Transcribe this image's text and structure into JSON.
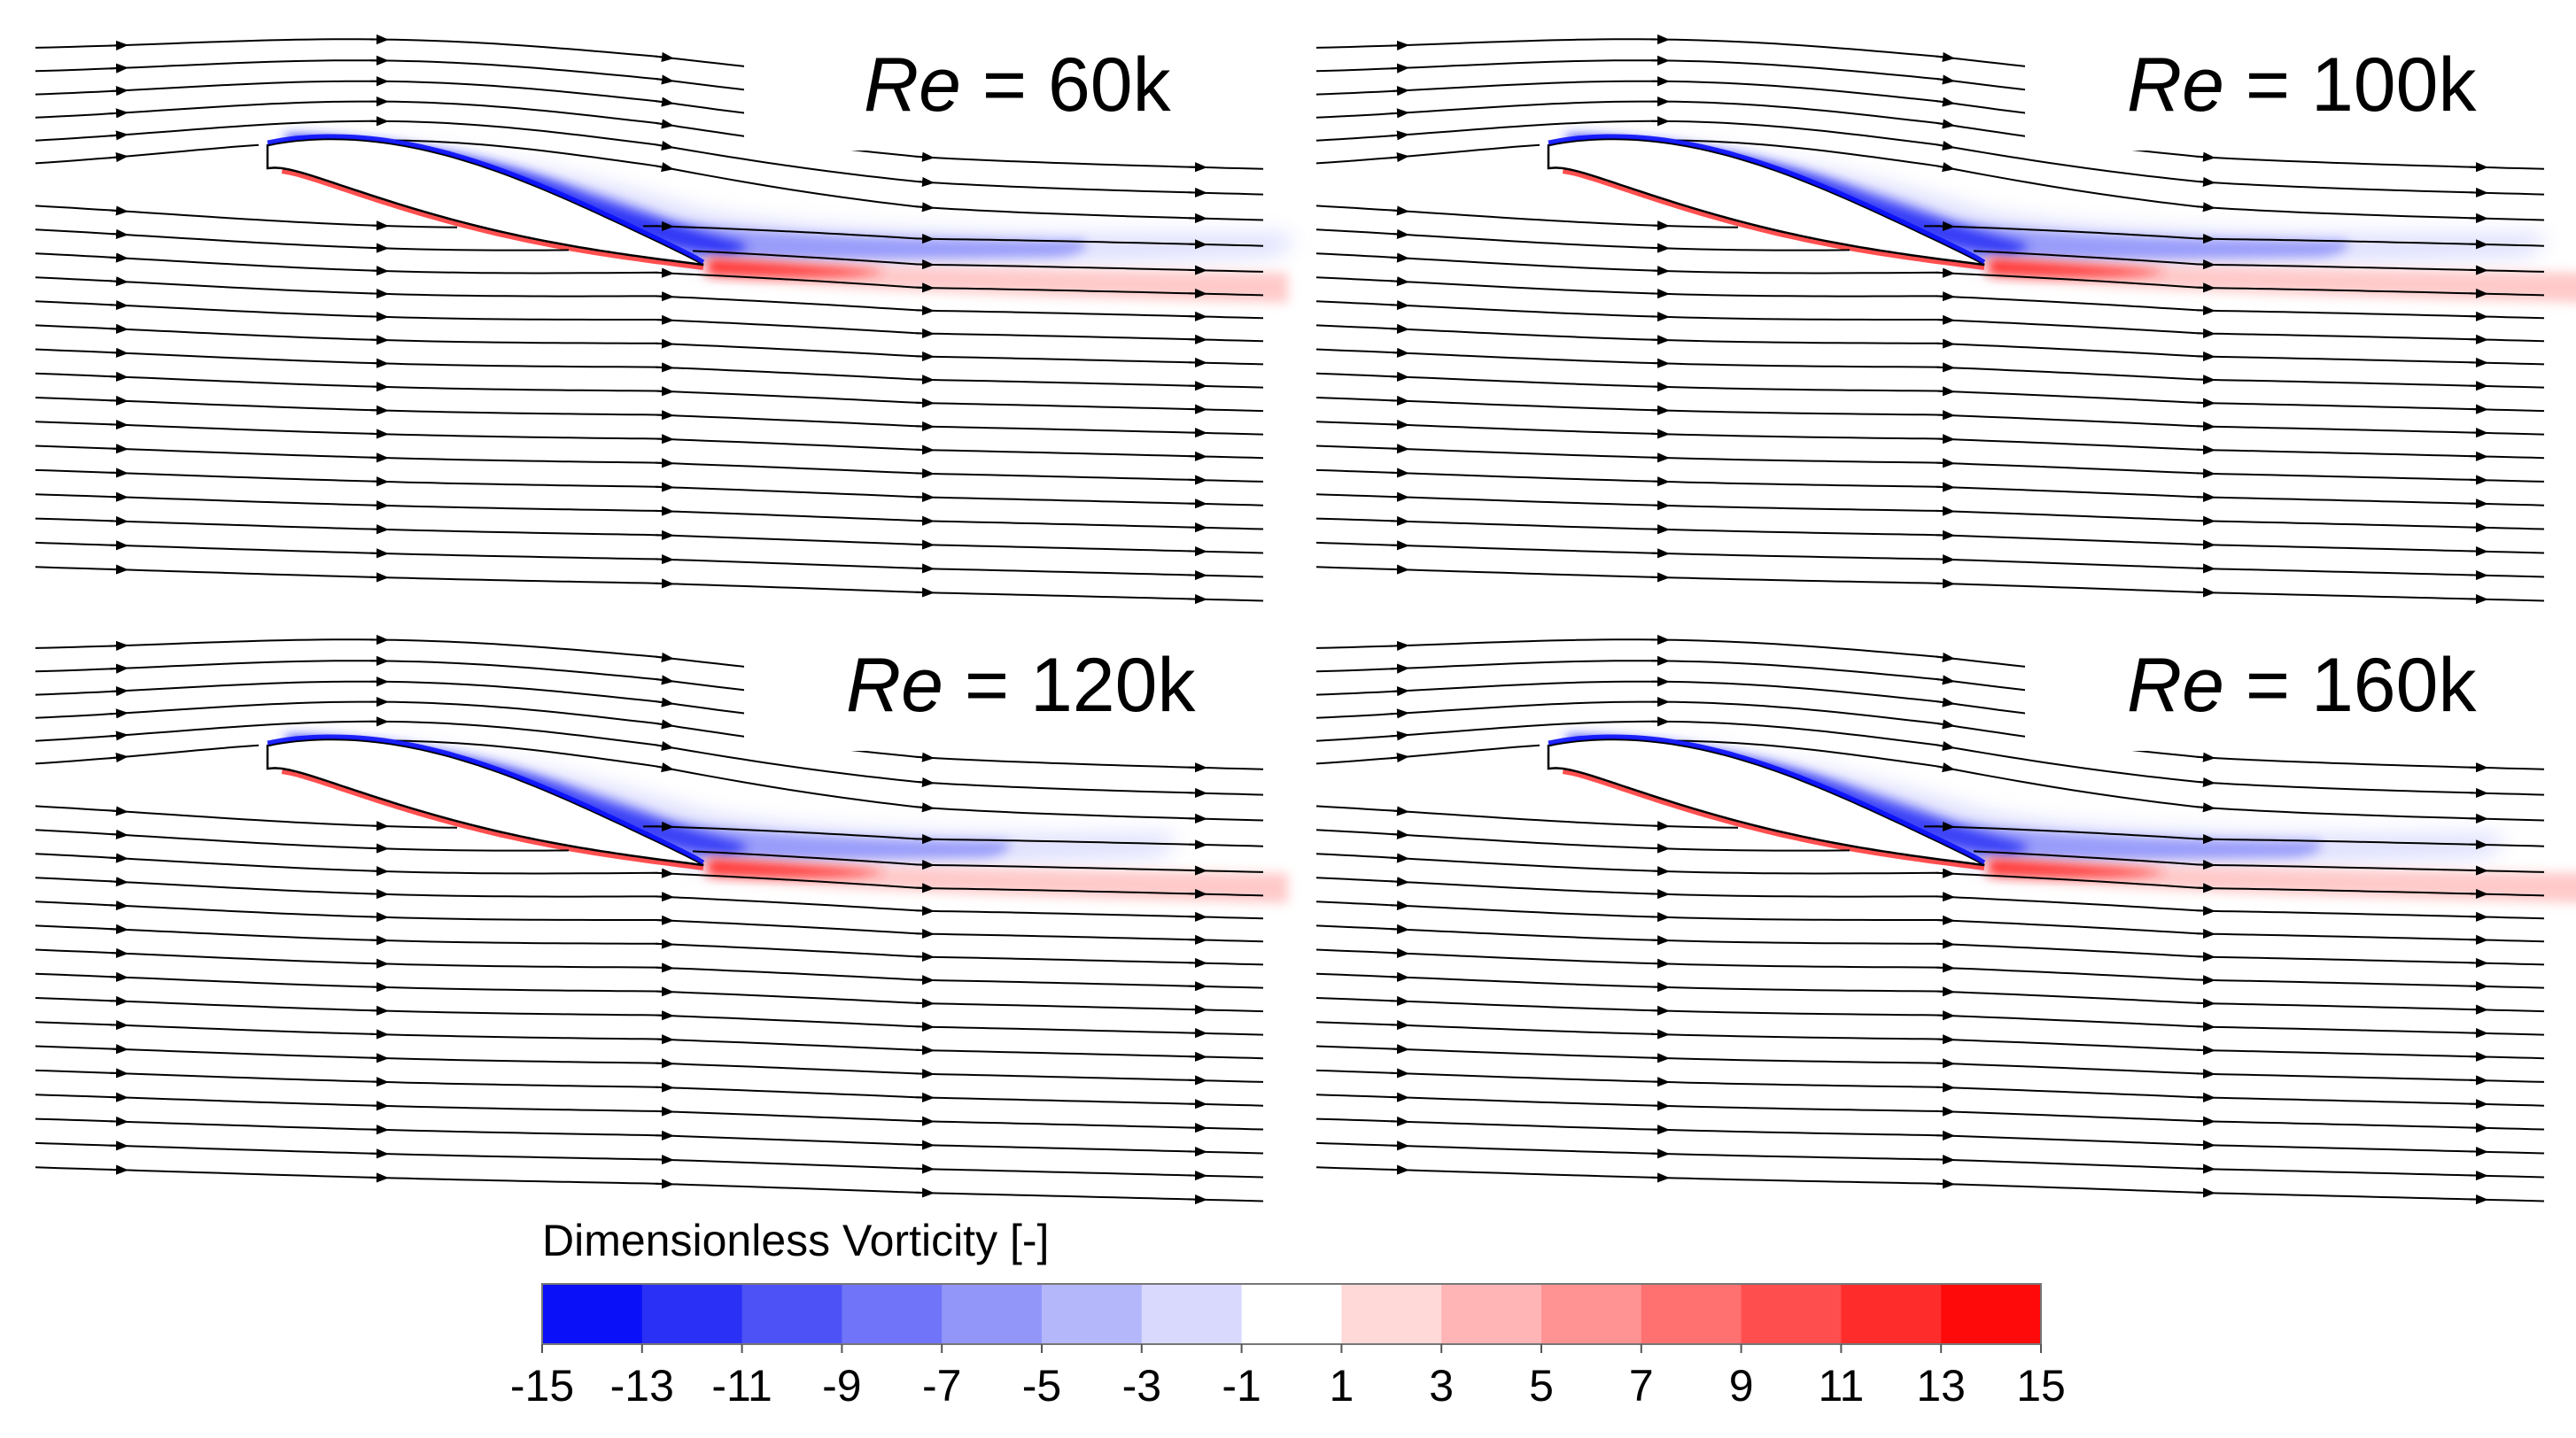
{
  "figure": {
    "panels": [
      {
        "id": "re60k",
        "re_symbol": "Re",
        "equals": " = ",
        "value_label": "60k",
        "wake_length": 1.0,
        "lower_wake_length": 1.0,
        "separation_strength": 1.0
      },
      {
        "id": "re100k",
        "re_symbol": "Re",
        "equals": " = ",
        "value_label": "100k",
        "wake_length": 0.95,
        "lower_wake_length": 1.05,
        "separation_strength": 0.95
      },
      {
        "id": "re120k",
        "re_symbol": "Re",
        "equals": " = ",
        "value_label": "120k",
        "wake_length": 0.8,
        "lower_wake_length": 1.0,
        "separation_strength": 0.9
      },
      {
        "id": "re160k",
        "re_symbol": "Re",
        "equals": " = ",
        "value_label": "160k",
        "wake_length": 0.88,
        "lower_wake_length": 1.05,
        "separation_strength": 0.9
      }
    ],
    "colorbar": {
      "title": "Dimensionless Vorticity [-]",
      "ticks": [
        "-15",
        "-13",
        "-11",
        "-9",
        "-7",
        "-5",
        "-3",
        "-1",
        "1",
        "3",
        "5",
        "7",
        "9",
        "11",
        "13",
        "15"
      ],
      "colors": [
        "#0a10f8",
        "#2b30f6",
        "#4d52f6",
        "#7074f8",
        "#9396f9",
        "#b5b7fb",
        "#d8d9fd",
        "#ffffff",
        "#ffd8d8",
        "#ffb5b5",
        "#ff9393",
        "#ff7070",
        "#ff4e4e",
        "#ff2c2c",
        "#ff0a0a"
      ]
    },
    "colors": {
      "streamline": "#000000",
      "negative": "#1a1af5",
      "positive": "#f51a1a"
    }
  }
}
